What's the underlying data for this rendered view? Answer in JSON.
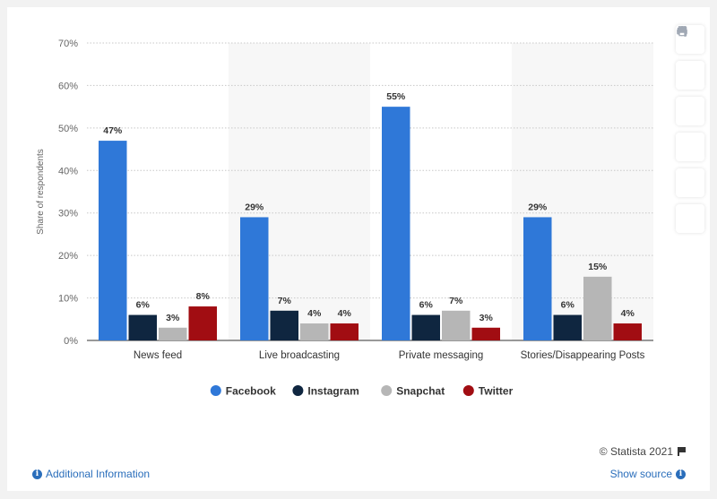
{
  "chart_data": {
    "type": "bar",
    "categories": [
      "News feed",
      "Live broadcasting",
      "Private messaging",
      "Stories/Disappearing Posts"
    ],
    "series": [
      {
        "name": "Facebook",
        "color": "#2f78d8",
        "values": [
          47,
          29,
          55,
          29
        ],
        "labels": [
          "47%",
          "29%",
          "55%",
          "29%"
        ]
      },
      {
        "name": "Instagram",
        "color": "#0f2640",
        "values": [
          6,
          7,
          6,
          6
        ],
        "labels": [
          "6%",
          "7%",
          "6%",
          "6%"
        ]
      },
      {
        "name": "Snapchat",
        "color": "#b6b6b6",
        "values": [
          3,
          4,
          7,
          15
        ],
        "labels": [
          "3%",
          "4%",
          "7%",
          "15%"
        ]
      },
      {
        "name": "Twitter",
        "color": "#a10d12",
        "values": [
          8,
          4,
          3,
          4
        ],
        "labels": [
          "8%",
          "4%",
          "3%",
          "4%"
        ]
      }
    ],
    "ylabel": "Share of respondents",
    "ylim": [
      0,
      70
    ],
    "yticks": [
      "0%",
      "10%",
      "20%",
      "30%",
      "40%",
      "50%",
      "60%",
      "70%"
    ],
    "grid": true,
    "legend_position": "bottom"
  },
  "toolbar": {
    "icons": [
      "star-icon",
      "bell-icon",
      "gear-icon",
      "share-icon",
      "quote-icon",
      "print-icon"
    ]
  },
  "footer": {
    "copyright": "© Statista 2021",
    "additional_info": "Additional Information",
    "show_source": "Show source"
  }
}
